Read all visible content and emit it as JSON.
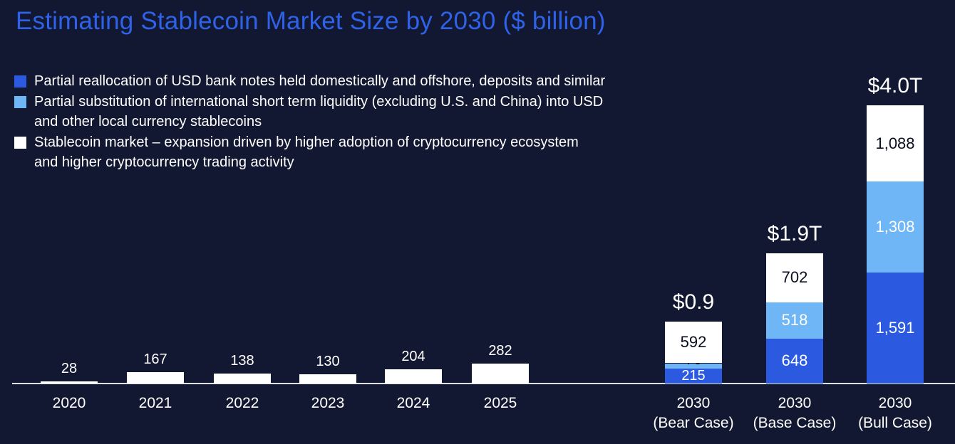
{
  "title": "Estimating Stablecoin Market Size by 2030 ($ billion)",
  "colors": {
    "background": "#121831",
    "title": "#2e62e9",
    "axis_line": "#dde1ea",
    "bar_blue": "#2b59e0",
    "bar_light_blue": "#6eb6f6",
    "bar_white": "#ffffff",
    "dark_label": "#0a0e1f"
  },
  "legend": {
    "items": [
      {
        "color": "#2b59e0",
        "lines": [
          "Partial reallocation of USD bank notes held domestically and offshore, deposits and similar"
        ]
      },
      {
        "color": "#6eb6f6",
        "lines": [
          "Partial substitution of international short term liquidity (excluding U.S. and China) into USD",
          "and other local currency stablecoins"
        ]
      },
      {
        "color": "#ffffff",
        "lines": [
          "Stablecoin market – expansion driven by higher adoption of cryptocurrency ecosystem",
          "and higher cryptocurrency trading activity"
        ]
      }
    ]
  },
  "chart_data": {
    "type": "bar",
    "stacked": true,
    "title": "Estimating Stablecoin Market Size by 2030 ($ billion)",
    "unit": "$ billion",
    "grid": false,
    "legend_position": "top-left",
    "ylim": [
      0,
      4100
    ],
    "categories": [
      "2020",
      "2021",
      "2022",
      "2023",
      "2024",
      "2025",
      "2030 (Bear Case)",
      "2030 (Base Case)",
      "2030 (Bull Case)"
    ],
    "category_lines": [
      [
        "2020"
      ],
      [
        "2021"
      ],
      [
        "2022"
      ],
      [
        "2023"
      ],
      [
        "2024"
      ],
      [
        "2025"
      ],
      [
        "2030",
        "(Bear Case)"
      ],
      [
        "2030",
        "(Base Case)"
      ],
      [
        "2030",
        "(Bull Case)"
      ]
    ],
    "series": [
      {
        "name": "Partial reallocation of USD bank notes held domestically and offshore, deposits and similar",
        "color": "#2b59e0",
        "values": [
          null,
          null,
          null,
          null,
          null,
          null,
          215,
          648,
          1591
        ]
      },
      {
        "name": "Partial substitution of international short term liquidity (excluding U.S. and China) into USD and other local currency stablecoins",
        "color": "#6eb6f6",
        "values": [
          null,
          null,
          null,
          null,
          null,
          null,
          76,
          518,
          1308
        ]
      },
      {
        "name": "Stablecoin market – expansion driven by higher adoption of cryptocurrency ecosystem and higher cryptocurrency trading activity",
        "color": "#ffffff",
        "values": [
          28,
          167,
          138,
          130,
          204,
          282,
          592,
          702,
          1088
        ]
      }
    ],
    "totals": [
      null,
      null,
      null,
      null,
      null,
      null,
      "$0.9",
      "$1.9T",
      "$4.0T"
    ]
  }
}
